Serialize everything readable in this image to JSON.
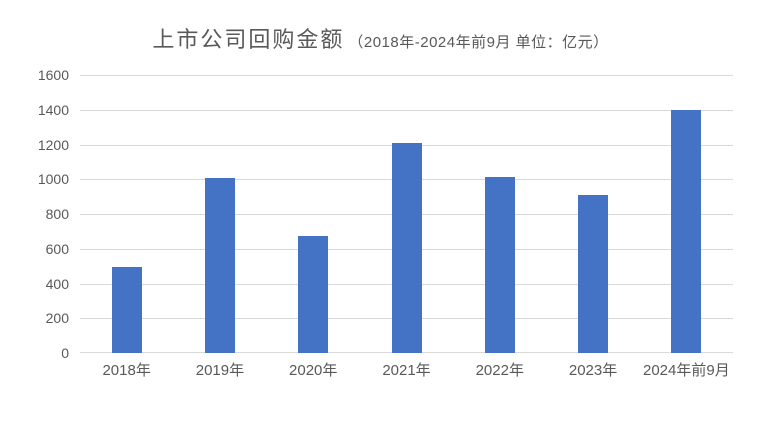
{
  "chart_data": {
    "type": "bar",
    "title": "上市公司回购金额",
    "subtitle": "（2018年-2024年前9月 单位：亿元）",
    "unit": "亿元",
    "categories": [
      "2018年",
      "2019年",
      "2020年",
      "2021年",
      "2022年",
      "2023年",
      "2024年前9月"
    ],
    "values": [
      495,
      1005,
      675,
      1210,
      1015,
      910,
      1400
    ],
    "xlabel": "",
    "ylabel": "",
    "ylim": [
      0,
      1600
    ],
    "ytick_step": 200,
    "yticks": [
      0,
      200,
      400,
      600,
      800,
      1000,
      1200,
      1400,
      1600
    ],
    "grid": true,
    "legend": "none",
    "colors": {
      "bar": "#4472C4",
      "gridline": "#D9D9D9",
      "axis_text": "#595959",
      "title_text": "#595959",
      "background": "#FFFFFF"
    }
  }
}
